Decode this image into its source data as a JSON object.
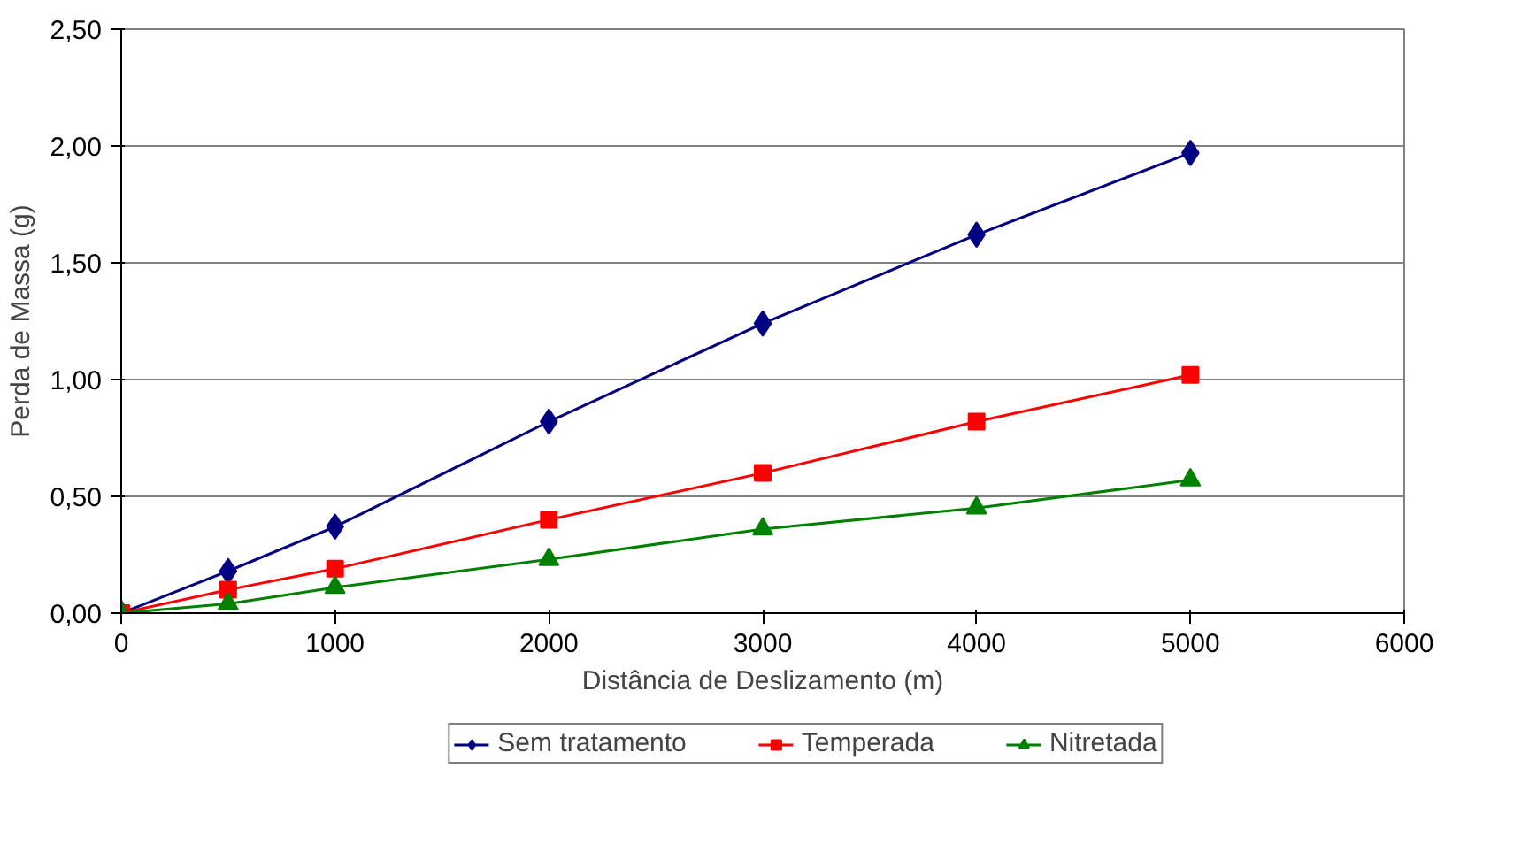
{
  "chart_data": {
    "type": "line",
    "xlabel": "Distância de Deslizamento (m)",
    "ylabel": "Perda de Massa (g)",
    "x": [
      0,
      500,
      1000,
      2000,
      3000,
      4000,
      5000
    ],
    "series": [
      {
        "name": "Sem tratamento",
        "color": "#000080",
        "marker": "diamond",
        "values": [
          0,
          0.18,
          0.37,
          0.82,
          1.24,
          1.62,
          1.97
        ]
      },
      {
        "name": "Temperada",
        "color": "#ff0000",
        "marker": "square",
        "values": [
          0,
          0.1,
          0.19,
          0.4,
          0.6,
          0.82,
          1.02
        ]
      },
      {
        "name": "Nitretada",
        "color": "#008000",
        "marker": "triangle",
        "values": [
          0,
          0.04,
          0.11,
          0.23,
          0.36,
          0.45,
          0.57
        ]
      }
    ],
    "xlim": [
      0,
      6000
    ],
    "xticks": [
      0,
      1000,
      2000,
      3000,
      4000,
      5000,
      6000
    ],
    "ylim": [
      0,
      2.5
    ],
    "yticks": [
      {
        "value": 0,
        "label": "0,00"
      },
      {
        "value": 0.5,
        "label": "0,50"
      },
      {
        "value": 1,
        "label": "1,00"
      },
      {
        "value": 1.5,
        "label": "1,50"
      },
      {
        "value": 2,
        "label": "2,00"
      },
      {
        "value": 2.5,
        "label": "2,50"
      }
    ],
    "grid": "y",
    "legend": "bottom",
    "line_style": "solid"
  }
}
